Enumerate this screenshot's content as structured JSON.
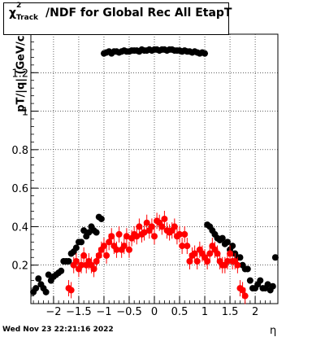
{
  "title": {
    "chi": "χ",
    "sup": "2",
    "sub": "Track",
    "rest": "/NDF for Global Rec All EtapT"
  },
  "footer": "Wed Nov 23 22:21:16 2022",
  "chart_data": {
    "type": "scatter",
    "xlabel": "η",
    "ylabel": "pT/|q|  (GeV/c",
    "xlim": [
      -2.45,
      2.45
    ],
    "ylim": [
      0.0,
      1.4
    ],
    "xticks": [
      -2,
      -1.5,
      -1,
      -0.5,
      0,
      0.5,
      1,
      1.5,
      2
    ],
    "xtick_labels": [
      "−2",
      "−1.5",
      "−1",
      "−0.5",
      "0",
      "0.5",
      "1",
      "1.5",
      "2"
    ],
    "yticks": [
      0.2,
      0.4,
      0.6,
      0.8,
      1.0,
      1.2
    ],
    "ytick_labels": [
      "0.2",
      "0.4",
      "0.6",
      "0.8",
      "1",
      "1.2"
    ],
    "grid": true,
    "series": [
      {
        "color": "#000000",
        "x": [
          -1.0,
          -0.95,
          -0.9,
          -0.85,
          -0.8,
          -0.75,
          -0.7,
          -0.65,
          -0.6,
          -0.55,
          -0.5,
          -0.45,
          -0.4,
          -0.35,
          -0.3,
          -0.25,
          -0.2,
          -0.15,
          -0.1,
          -0.05,
          0.0,
          0.05,
          0.1,
          0.15,
          0.2,
          0.25,
          0.3,
          0.35,
          0.4,
          0.45,
          0.5,
          0.55,
          0.6,
          0.65,
          0.7,
          0.75,
          0.8,
          0.85,
          0.9,
          0.95,
          1.0,
          -2.4,
          -2.35,
          -2.3,
          -2.25,
          -2.2,
          -2.15,
          -2.1,
          -2.05,
          -2.0,
          -1.95,
          -1.9,
          -1.85,
          -1.8,
          -1.75,
          -1.7,
          -1.65,
          -1.6,
          -1.55,
          -1.5,
          -1.45,
          -1.4,
          -1.35,
          -1.3,
          -1.25,
          -1.2,
          -1.15,
          -1.1,
          -1.05,
          1.05,
          1.1,
          1.15,
          1.2,
          1.25,
          1.3,
          1.35,
          1.4,
          1.45,
          1.5,
          1.55,
          1.6,
          1.65,
          1.7,
          1.75,
          1.8,
          1.85,
          1.9,
          1.95,
          2.0,
          2.05,
          2.1,
          2.15,
          2.2,
          2.25,
          2.3,
          2.35,
          2.4
        ],
        "y": [
          1.3,
          1.305,
          1.31,
          1.3,
          1.31,
          1.31,
          1.305,
          1.31,
          1.315,
          1.31,
          1.31,
          1.315,
          1.315,
          1.315,
          1.31,
          1.32,
          1.315,
          1.315,
          1.32,
          1.315,
          1.32,
          1.32,
          1.315,
          1.32,
          1.32,
          1.315,
          1.32,
          1.32,
          1.315,
          1.315,
          1.315,
          1.31,
          1.315,
          1.31,
          1.31,
          1.305,
          1.31,
          1.305,
          1.3,
          1.305,
          1.3,
          0.06,
          0.08,
          0.13,
          0.1,
          0.08,
          0.06,
          0.15,
          0.12,
          0.14,
          0.15,
          0.16,
          0.17,
          0.22,
          0.22,
          0.22,
          0.26,
          0.27,
          0.29,
          0.32,
          0.32,
          0.38,
          0.35,
          0.37,
          0.4,
          0.38,
          0.37,
          0.45,
          0.44,
          0.41,
          0.4,
          0.38,
          0.36,
          0.34,
          0.33,
          0.34,
          0.31,
          0.32,
          0.28,
          0.3,
          0.26,
          0.24,
          0.24,
          0.2,
          0.18,
          0.18,
          0.12,
          0.08,
          0.08,
          0.1,
          0.12,
          0.08,
          0.08,
          0.1,
          0.07,
          0.09,
          0.24
        ]
      },
      {
        "color": "#ff0000",
        "x": [
          -1.7,
          -1.65,
          -1.6,
          -1.55,
          -1.5,
          -1.45,
          -1.4,
          -1.35,
          -1.3,
          -1.25,
          -1.2,
          -1.15,
          -1.1,
          -1.05,
          -1.0,
          -0.95,
          -0.9,
          -0.85,
          -0.8,
          -0.75,
          -0.7,
          -0.65,
          -0.6,
          -0.55,
          -0.5,
          -0.45,
          -0.4,
          -0.35,
          -0.3,
          -0.25,
          -0.2,
          -0.15,
          -0.1,
          -0.05,
          0.0,
          0.05,
          0.1,
          0.15,
          0.2,
          0.25,
          0.3,
          0.35,
          0.4,
          0.45,
          0.5,
          0.55,
          0.6,
          0.65,
          0.7,
          0.75,
          0.8,
          0.85,
          0.9,
          0.95,
          1.0,
          1.05,
          1.1,
          1.15,
          1.2,
          1.25,
          1.3,
          1.35,
          1.4,
          1.45,
          1.5,
          1.55,
          1.6,
          1.65,
          1.7,
          1.75,
          1.8
        ],
        "y": [
          0.08,
          0.07,
          0.2,
          0.22,
          0.18,
          0.2,
          0.25,
          0.2,
          0.22,
          0.2,
          0.18,
          0.22,
          0.25,
          0.28,
          0.3,
          0.25,
          0.32,
          0.35,
          0.3,
          0.28,
          0.36,
          0.28,
          0.3,
          0.35,
          0.28,
          0.34,
          0.36,
          0.35,
          0.4,
          0.36,
          0.37,
          0.42,
          0.38,
          0.4,
          0.35,
          0.43,
          0.42,
          0.4,
          0.44,
          0.38,
          0.37,
          0.38,
          0.4,
          0.35,
          0.36,
          0.3,
          0.36,
          0.3,
          0.22,
          0.25,
          0.26,
          0.22,
          0.28,
          0.26,
          0.24,
          0.22,
          0.26,
          0.3,
          0.28,
          0.26,
          0.22,
          0.2,
          0.2,
          0.22,
          0.26,
          0.22,
          0.22,
          0.2,
          0.08,
          0.07,
          0.04
        ]
      }
    ]
  }
}
